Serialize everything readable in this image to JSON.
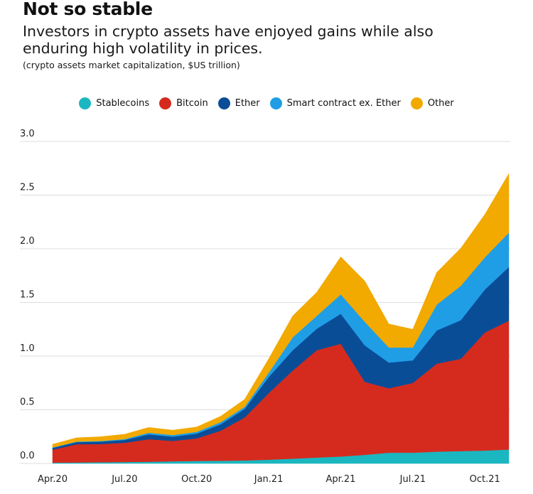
{
  "chart_data": {
    "type": "area",
    "stacked": true,
    "title": "Not so stable",
    "subtitle": "Investors in crypto assets have enjoyed gains while also enduring high volatility in prices.",
    "note": "(crypto assets market capitalization, $US trillion)",
    "ylim": [
      0,
      3.0
    ],
    "yticks": [
      "0.0",
      "0.5",
      "1.0",
      "1.5",
      "2.0",
      "2.5",
      "3.0"
    ],
    "xticks": [
      "Apr.20",
      "Jul.20",
      "Oct.20",
      "Jan.21",
      "Apr.21",
      "Jul.21",
      "Oct.21"
    ],
    "x_months": [
      "2020-04",
      "2020-05",
      "2020-06",
      "2020-07",
      "2020-08",
      "2020-09",
      "2020-10",
      "2020-11",
      "2020-12",
      "2021-01",
      "2021-02",
      "2021-03",
      "2021-04",
      "2021-05",
      "2021-06",
      "2021-07",
      "2021-08",
      "2021-09",
      "2021-10",
      "2021-11"
    ],
    "series": [
      {
        "name": "Stablecoins",
        "color": "#1bb7c0",
        "values": [
          0.007,
          0.009,
          0.011,
          0.013,
          0.016,
          0.02,
          0.023,
          0.025,
          0.028,
          0.035,
          0.045,
          0.055,
          0.065,
          0.08,
          0.1,
          0.1,
          0.11,
          0.115,
          0.12,
          0.13
        ]
      },
      {
        "name": "Bitcoin",
        "color": "#d52b1e",
        "values": [
          0.12,
          0.17,
          0.17,
          0.18,
          0.21,
          0.19,
          0.21,
          0.28,
          0.4,
          0.62,
          0.82,
          1.0,
          1.05,
          0.68,
          0.6,
          0.65,
          0.82,
          0.86,
          1.1,
          1.2
        ]
      },
      {
        "name": "Ether",
        "color": "#0a4d97",
        "values": [
          0.018,
          0.02,
          0.022,
          0.026,
          0.045,
          0.04,
          0.045,
          0.06,
          0.08,
          0.15,
          0.19,
          0.2,
          0.28,
          0.34,
          0.24,
          0.21,
          0.31,
          0.36,
          0.4,
          0.5
        ]
      },
      {
        "name": "Smart contract ex. Ether",
        "color": "#1f9ee6",
        "values": [
          0.004,
          0.005,
          0.006,
          0.008,
          0.015,
          0.015,
          0.017,
          0.02,
          0.02,
          0.04,
          0.12,
          0.12,
          0.18,
          0.22,
          0.14,
          0.12,
          0.24,
          0.32,
          0.3,
          0.32
        ]
      },
      {
        "name": "Other",
        "color": "#f2a900",
        "values": [
          0.03,
          0.035,
          0.04,
          0.045,
          0.05,
          0.045,
          0.045,
          0.055,
          0.07,
          0.13,
          0.2,
          0.22,
          0.35,
          0.38,
          0.22,
          0.17,
          0.3,
          0.35,
          0.4,
          0.55
        ]
      }
    ]
  }
}
